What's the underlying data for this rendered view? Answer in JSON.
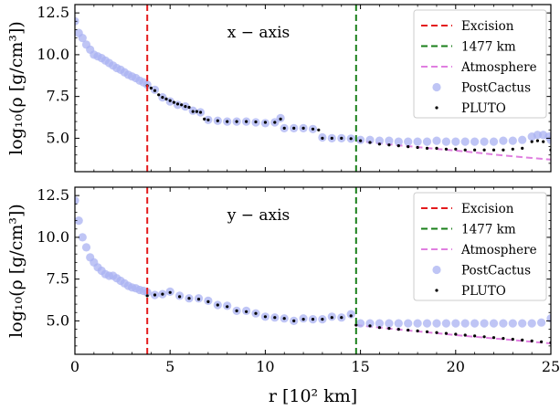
{
  "chart_data": [
    {
      "type": "scatter",
      "panel": "top",
      "annotation": "x − axis",
      "ylabel": "log₁₀(ρ [g/cm³])",
      "xlabel": "",
      "xlim": [
        0,
        25
      ],
      "ylim": [
        3.0,
        13.0
      ],
      "yticks": [
        5.0,
        7.5,
        10.0,
        12.5
      ],
      "ytick_labels": [
        "5.0",
        "7.5",
        "10.0",
        "12.5"
      ],
      "xticks": [
        0,
        5,
        10,
        15,
        20,
        25
      ],
      "xtick_labels": [],
      "grid": false,
      "legend_position": "top-right",
      "vlines": [
        {
          "name": "Excision",
          "x": 3.8,
          "color": "#e41a1c",
          "style": "dashed"
        },
        {
          "name": "1477 km",
          "x": 14.77,
          "color": "#1a7f1a",
          "style": "dashed"
        }
      ],
      "series": [
        {
          "name": "Atmosphere",
          "kind": "line",
          "color": "#e07fe0",
          "style": "dashed",
          "x": [
            14.77,
            16,
            17,
            18,
            19,
            20,
            21,
            22,
            23,
            24,
            25
          ],
          "y": [
            4.85,
            4.7,
            4.58,
            4.47,
            4.36,
            4.26,
            4.15,
            4.03,
            3.92,
            3.82,
            3.72
          ]
        },
        {
          "name": "PostCactus",
          "kind": "scatter",
          "color": "#aab2f2",
          "x": [
            0,
            0.2,
            0.4,
            0.6,
            0.8,
            1.0,
            1.2,
            1.4,
            1.6,
            1.8,
            2.0,
            2.2,
            2.4,
            2.6,
            2.8,
            3.0,
            3.2,
            3.4,
            3.6,
            3.8,
            4.2,
            4.6,
            5.0,
            5.4,
            5.8,
            6.2,
            6.6,
            7.0,
            7.5,
            8,
            8.5,
            9,
            9.5,
            10,
            10.5,
            10.8,
            11,
            11.5,
            12,
            12.5,
            13,
            13.5,
            14,
            14.5,
            15,
            15.5,
            16,
            16.5,
            17,
            17.5,
            18,
            18.5,
            19,
            19.5,
            20,
            20.5,
            21,
            21.5,
            22,
            22.5,
            23,
            23.5,
            24,
            24.3,
            24.6,
            24.9,
            25
          ],
          "y": [
            12.0,
            11.3,
            11.0,
            10.6,
            10.3,
            10.0,
            9.9,
            9.8,
            9.65,
            9.5,
            9.35,
            9.2,
            9.1,
            8.95,
            8.8,
            8.7,
            8.6,
            8.45,
            8.35,
            8.2,
            7.9,
            7.45,
            7.2,
            7.0,
            6.9,
            6.65,
            6.55,
            6.1,
            6.05,
            6.0,
            6.0,
            6.0,
            5.95,
            5.9,
            5.95,
            6.2,
            5.6,
            5.6,
            5.6,
            5.55,
            5.05,
            5.0,
            5.0,
            4.98,
            4.9,
            4.9,
            4.85,
            4.85,
            4.8,
            4.8,
            4.8,
            4.8,
            4.85,
            4.8,
            4.8,
            4.8,
            4.8,
            4.8,
            4.8,
            4.85,
            4.85,
            4.9,
            5.1,
            5.2,
            5.2,
            5.1,
            4.9
          ]
        },
        {
          "name": "PLUTO",
          "kind": "scatter",
          "color": "#000000",
          "x": [
            3.8,
            4.0,
            4.2,
            4.4,
            4.6,
            4.8,
            5.0,
            5.2,
            5.4,
            5.6,
            5.8,
            6.0,
            6.2,
            6.4,
            6.6,
            6.8,
            7.0,
            7.5,
            8.0,
            8.5,
            9.0,
            9.5,
            10.0,
            10.5,
            10.8,
            11.0,
            11.5,
            12.0,
            12.5,
            12.8,
            13.0,
            13.5,
            14.0,
            14.5,
            15,
            15.5,
            16,
            16.5,
            17,
            17.5,
            18,
            18.5,
            19,
            19.5,
            20,
            20.5,
            21,
            21.5,
            22,
            22.5,
            23,
            23.5,
            24,
            24.3,
            24.6,
            25
          ],
          "y": [
            8.15,
            8.0,
            7.85,
            7.6,
            7.45,
            7.35,
            7.25,
            7.15,
            7.05,
            7.0,
            6.9,
            6.85,
            6.6,
            6.6,
            6.55,
            6.15,
            6.1,
            6.05,
            6.0,
            6.0,
            6.0,
            5.98,
            5.95,
            5.95,
            6.15,
            5.6,
            5.6,
            5.6,
            5.55,
            5.5,
            5.0,
            5.0,
            5.0,
            4.98,
            4.85,
            4.75,
            4.65,
            4.6,
            4.55,
            4.5,
            4.45,
            4.4,
            4.4,
            4.35,
            4.35,
            4.3,
            4.3,
            4.3,
            4.3,
            4.3,
            4.35,
            4.4,
            4.8,
            4.85,
            4.8,
            4.3
          ]
        }
      ]
    },
    {
      "type": "scatter",
      "panel": "bottom",
      "annotation": "y − axis",
      "ylabel": "log₁₀(ρ [g/cm³])",
      "xlabel": "r [10² km]",
      "xlim": [
        0,
        25
      ],
      "ylim": [
        3.0,
        13.0
      ],
      "yticks": [
        5.0,
        7.5,
        10.0,
        12.5
      ],
      "ytick_labels": [
        "5.0",
        "7.5",
        "10.0",
        "12.5"
      ],
      "xticks": [
        0,
        5,
        10,
        15,
        20,
        25
      ],
      "xtick_labels": [
        "0",
        "5",
        "10",
        "15",
        "20",
        "25"
      ],
      "grid": false,
      "legend_position": "top-right",
      "vlines": [
        {
          "name": "Excision",
          "x": 3.8,
          "color": "#e41a1c",
          "style": "dashed"
        },
        {
          "name": "1477 km",
          "x": 14.77,
          "color": "#1a7f1a",
          "style": "dashed"
        }
      ],
      "series": [
        {
          "name": "Atmosphere",
          "kind": "line",
          "color": "#e07fe0",
          "style": "dashed",
          "x": [
            14.77,
            16,
            17,
            18,
            19,
            20,
            21,
            22,
            23,
            24,
            25
          ],
          "y": [
            4.75,
            4.6,
            4.48,
            4.37,
            4.26,
            4.15,
            4.05,
            3.95,
            3.85,
            3.75,
            3.65
          ]
        },
        {
          "name": "PostCactus",
          "kind": "scatter",
          "color": "#aab2f2",
          "x": [
            0,
            0.2,
            0.4,
            0.6,
            0.8,
            1.0,
            1.2,
            1.4,
            1.6,
            1.8,
            2.0,
            2.2,
            2.4,
            2.6,
            2.8,
            3.0,
            3.2,
            3.4,
            3.6,
            3.8,
            4.2,
            4.6,
            5.0,
            5.5,
            6.0,
            6.5,
            7,
            7.5,
            8,
            8.5,
            9,
            9.5,
            10,
            10.5,
            11,
            11.5,
            12,
            12.5,
            13,
            13.5,
            14,
            14.5,
            15,
            15.5,
            16,
            16.5,
            17,
            17.5,
            18,
            18.5,
            19,
            19.5,
            20,
            20.5,
            21,
            21.5,
            22,
            22.5,
            23,
            23.5,
            24,
            24.5,
            25
          ],
          "y": [
            12.2,
            11.0,
            10.0,
            9.4,
            8.8,
            8.5,
            8.2,
            8.0,
            7.8,
            7.7,
            7.7,
            7.55,
            7.4,
            7.25,
            7.1,
            7.0,
            6.95,
            6.85,
            6.8,
            6.7,
            6.55,
            6.6,
            6.75,
            6.5,
            6.35,
            6.35,
            6.2,
            5.95,
            5.9,
            5.6,
            5.6,
            5.45,
            5.25,
            5.2,
            5.15,
            5.0,
            5.15,
            5.1,
            5.1,
            5.25,
            5.2,
            5.4,
            4.85,
            4.85,
            4.85,
            4.85,
            4.85,
            4.85,
            4.85,
            4.85,
            4.85,
            4.85,
            4.85,
            4.85,
            4.85,
            4.85,
            4.85,
            4.85,
            4.85,
            4.85,
            4.85,
            4.9,
            5.15
          ]
        },
        {
          "name": "PLUTO",
          "kind": "scatter",
          "color": "#000000",
          "x": [
            3.8,
            4.2,
            4.6,
            5.0,
            5.5,
            6.0,
            6.5,
            7.0,
            7.5,
            8.0,
            8.5,
            9.0,
            9.5,
            10.0,
            10.5,
            11.0,
            11.5,
            12.0,
            12.5,
            13.0,
            13.5,
            14.0,
            14.5,
            14.77,
            15.5,
            16,
            16.5,
            17,
            17.5,
            18,
            18.5,
            19,
            19.5,
            20,
            20.5,
            21,
            21.5,
            22,
            22.5,
            23,
            23.5,
            24,
            24.5,
            25
          ],
          "y": [
            6.5,
            6.55,
            6.6,
            6.7,
            6.45,
            6.35,
            6.3,
            6.15,
            5.95,
            5.85,
            5.6,
            5.55,
            5.45,
            5.25,
            5.2,
            5.15,
            5.0,
            5.1,
            5.1,
            5.1,
            5.2,
            5.2,
            5.3,
            4.75,
            4.7,
            4.6,
            4.55,
            4.5,
            4.45,
            4.4,
            4.35,
            4.3,
            4.25,
            4.2,
            4.15,
            4.1,
            4.05,
            4.0,
            3.95,
            3.9,
            3.85,
            3.8,
            3.75,
            3.7
          ]
        }
      ]
    }
  ]
}
